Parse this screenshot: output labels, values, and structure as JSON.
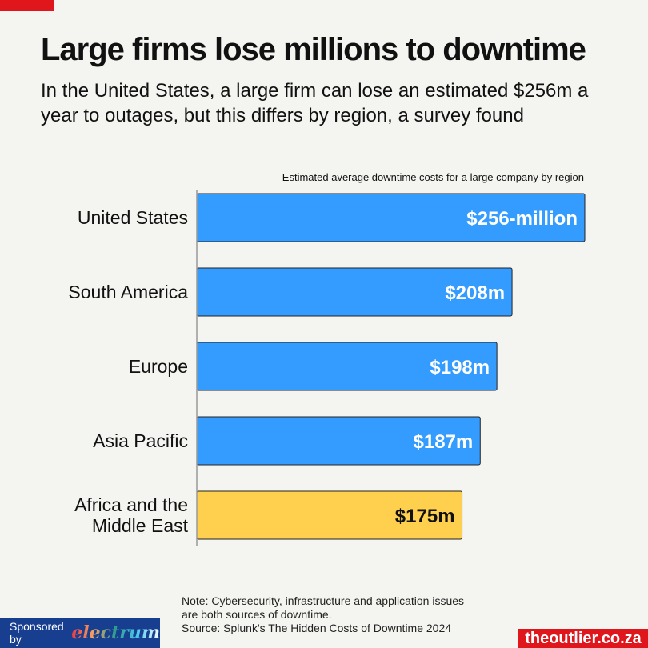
{
  "header": {
    "title": "Large firms lose millions to downtime",
    "subtitle": "In the United States, a large firm can lose an estimated $256m a year to outages, but this differs by region, a survey found"
  },
  "chart_data": {
    "type": "bar",
    "orientation": "horizontal",
    "title": "Estimated average downtime costs for a large company by region",
    "categories": [
      "United States",
      "South America",
      "Europe",
      "Asia Pacific",
      "Africa and the Middle East"
    ],
    "values": [
      256,
      208,
      198,
      187,
      175
    ],
    "labels": [
      "$256-million",
      "$208m",
      "$198m",
      "$187m",
      "$175m"
    ],
    "colors": [
      "#359cff",
      "#359cff",
      "#359cff",
      "#359cff",
      "#ffd04d"
    ],
    "unit": "USD million",
    "xlim": [
      0,
      256
    ]
  },
  "footer": {
    "note1": "Note: Cybersecurity, infrastructure and application issues",
    "note2": "are both sources of downtime.",
    "source": "Source: Splunk's The Hidden Costs of Downtime 2024",
    "sponsored": "Sponsored by",
    "sponsor_brand": "electrum",
    "site": "theoutlier.co.za"
  }
}
